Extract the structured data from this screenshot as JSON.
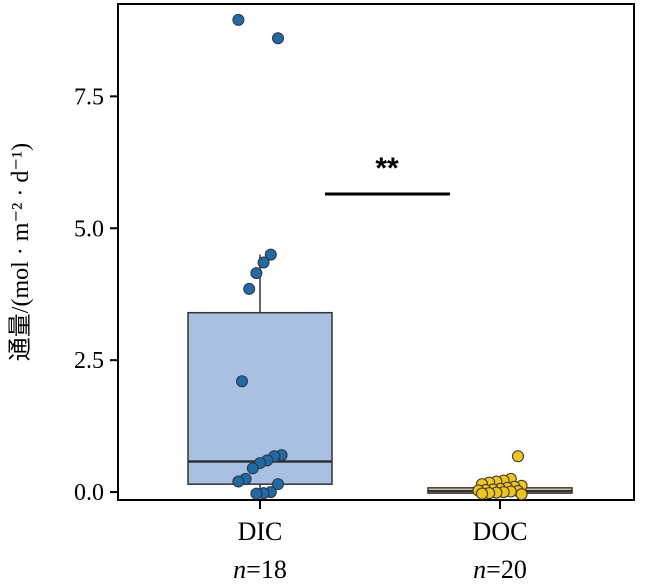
{
  "chart_data": {
    "type": "box",
    "ylabel": "通量/(mol · m⁻² · d⁻¹)",
    "ylim": [
      -0.15,
      9.25
    ],
    "yticks": [
      0.0,
      2.5,
      5.0,
      7.5
    ],
    "ytick_labels": [
      "0.0",
      "2.5",
      "5.0",
      "7.5"
    ],
    "grid": false,
    "legend": "none",
    "groups": [
      {
        "category": "DIC",
        "n_label": "n=18",
        "box_color": "#a8c1e3",
        "point_color": "#1f6aa8",
        "q1": 0.15,
        "median": 0.58,
        "q3": 3.4,
        "whisker_low": -0.05,
        "whisker_high": 4.5,
        "points": [
          8.95,
          8.6,
          4.5,
          4.35,
          4.15,
          3.85,
          2.1,
          0.7,
          0.68,
          0.6,
          0.55,
          0.45,
          0.25,
          0.2,
          0.15,
          0.0,
          -0.02,
          -0.03
        ]
      },
      {
        "category": "DOC",
        "n_label": "n=20",
        "box_color": "#fff3c0",
        "point_color": "#f0c419",
        "q1": -0.02,
        "median": 0.02,
        "q3": 0.08,
        "whisker_low": -0.05,
        "whisker_high": 0.1,
        "points": [
          0.68,
          0.25,
          0.22,
          0.2,
          0.18,
          0.15,
          0.12,
          0.1,
          0.08,
          0.06,
          0.05,
          0.04,
          0.03,
          0.02,
          0.01,
          0.0,
          -0.01,
          -0.02,
          -0.03,
          -0.04
        ]
      }
    ],
    "annotation": {
      "text": "**",
      "y": 5.65
    }
  }
}
